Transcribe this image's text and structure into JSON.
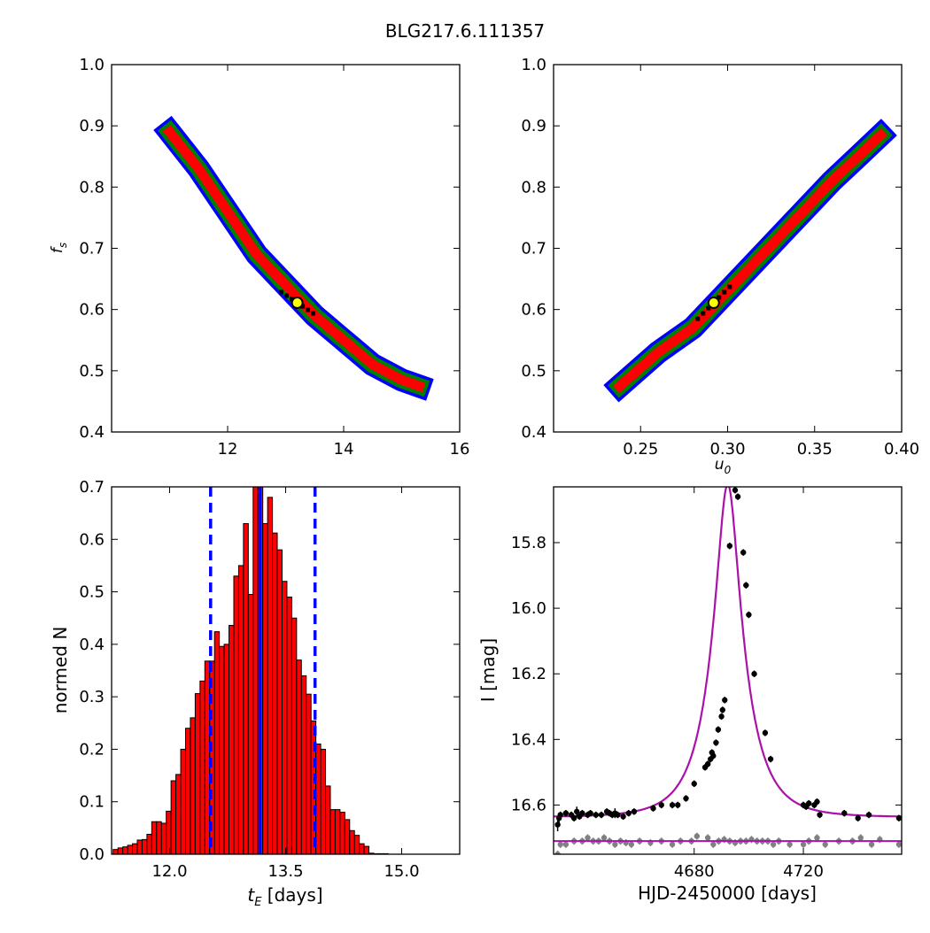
{
  "figure": {
    "title": "BLG217.6.111357"
  },
  "chart_data": [
    {
      "type": "heatmap",
      "id": "fs-vs-tE",
      "xlabel": "",
      "ylabel": "f_s",
      "xlim": [
        10,
        16
      ],
      "ylim": [
        0.4,
        1.0
      ],
      "xticks": [
        "12",
        "14",
        "16"
      ],
      "xtick_values": [
        12,
        14,
        16
      ],
      "yticks": [
        "0.4",
        "0.5",
        "0.6",
        "0.7",
        "0.8",
        "0.9",
        "1.0"
      ],
      "ytick_values": [
        0.4,
        0.5,
        0.6,
        0.7,
        0.8,
        0.9,
        1.0
      ],
      "levels": [
        "blue",
        "green",
        "red",
        "black"
      ],
      "colors": {
        "blue": "#0000ff",
        "green": "#008000",
        "red": "#ff0000",
        "black": "#000000",
        "marker_fill": "#ffff00"
      },
      "ridge": [
        [
          11.0,
          0.89
        ],
        [
          11.5,
          0.83
        ],
        [
          12.0,
          0.76
        ],
        [
          12.5,
          0.69
        ],
        [
          13.0,
          0.64
        ],
        [
          13.5,
          0.59
        ],
        [
          14.0,
          0.55
        ],
        [
          14.5,
          0.51
        ],
        [
          15.0,
          0.485
        ],
        [
          15.3,
          0.475
        ]
      ],
      "best_fit": {
        "x": 13.2,
        "y": 0.611
      }
    },
    {
      "type": "heatmap",
      "id": "fs-vs-u0",
      "xlabel": "u_0",
      "ylabel": "",
      "xlim": [
        0.2,
        0.4
      ],
      "ylim": [
        0.4,
        1.0
      ],
      "xticks": [
        "0.25",
        "0.30",
        "0.35",
        "0.40"
      ],
      "xtick_values": [
        0.25,
        0.3,
        0.35,
        0.4
      ],
      "yticks": [
        "0.4",
        "0.5",
        "0.6",
        "0.7",
        "0.8",
        "0.9",
        "1.0"
      ],
      "ytick_values": [
        0.4,
        0.5,
        0.6,
        0.7,
        0.8,
        0.9,
        1.0
      ],
      "levels": [
        "blue",
        "green",
        "red",
        "black"
      ],
      "colors": {
        "blue": "#0000ff",
        "green": "#008000",
        "red": "#ff0000",
        "black": "#000000",
        "marker_fill": "#ffff00"
      },
      "ridge": [
        [
          0.238,
          0.475
        ],
        [
          0.26,
          0.53
        ],
        [
          0.28,
          0.57
        ],
        [
          0.3,
          0.63
        ],
        [
          0.32,
          0.69
        ],
        [
          0.34,
          0.75
        ],
        [
          0.36,
          0.81
        ],
        [
          0.375,
          0.85
        ],
        [
          0.388,
          0.885
        ]
      ],
      "best_fit": {
        "x": 0.292,
        "y": 0.611
      }
    },
    {
      "type": "bar",
      "id": "tE-histogram",
      "xlabel": "t_E [days]",
      "ylabel": "normed N",
      "xlim": [
        11.25,
        15.75
      ],
      "ylim": [
        0.0,
        0.7
      ],
      "xticks": [
        "12.0",
        "13.5",
        "15.0"
      ],
      "xtick_values": [
        12.0,
        13.5,
        15.0
      ],
      "yticks": [
        "0.0",
        "0.1",
        "0.2",
        "0.3",
        "0.4",
        "0.5",
        "0.6",
        "0.7"
      ],
      "ytick_values": [
        0.0,
        0.1,
        0.2,
        0.3,
        0.4,
        0.5,
        0.6,
        0.7
      ],
      "bin_start": 11.27,
      "bin_width": 0.0624,
      "values": [
        0.009,
        0.012,
        0.014,
        0.017,
        0.02,
        0.027,
        0.028,
        0.038,
        0.062,
        0.062,
        0.059,
        0.082,
        0.14,
        0.152,
        0.2,
        0.24,
        0.26,
        0.306,
        0.33,
        0.368,
        0.368,
        0.424,
        0.396,
        0.4,
        0.436,
        0.53,
        0.55,
        0.63,
        0.495,
        0.7,
        0.7,
        0.63,
        0.68,
        0.612,
        0.58,
        0.52,
        0.49,
        0.45,
        0.37,
        0.34,
        0.305,
        0.254,
        0.21,
        0.2,
        0.13,
        0.085,
        0.085,
        0.08,
        0.066,
        0.045,
        0.036,
        0.02,
        0.015,
        0.002,
        0.001,
        0.001,
        0.001
      ],
      "median": 13.17,
      "interval": [
        12.53,
        13.88
      ],
      "colors": {
        "bar": "#ff0000",
        "edge": "#000000",
        "lines": "#0000ff"
      }
    },
    {
      "type": "scatter",
      "id": "lightcurve",
      "xlabel": "HJD-2450000 [days]",
      "ylabel": "I [mag]",
      "xlim": [
        4628.5,
        4756
      ],
      "ylim": [
        16.75,
        15.63
      ],
      "xticks": [
        "4680",
        "4720"
      ],
      "xtick_values": [
        4680,
        4720
      ],
      "yticks": [
        "15.8",
        "16.0",
        "16.2",
        "16.4",
        "16.6"
      ],
      "ytick_values": [
        15.8,
        16.0,
        16.2,
        16.4,
        16.6
      ],
      "model": {
        "t0": 4692.3,
        "tE": 13.17,
        "u0": 0.292,
        "fs": 0.611,
        "I_base": 16.637,
        "residual_level": 16.71
      },
      "points": [
        [
          4630,
          16.66,
          0.02
        ],
        [
          4630.5,
          16.64,
          0.015
        ],
        [
          4631,
          16.63,
          0.01
        ],
        [
          4633,
          16.625,
          0.01
        ],
        [
          4635,
          16.63,
          0.01
        ],
        [
          4636,
          16.64,
          0.01
        ],
        [
          4637,
          16.62,
          0.015
        ],
        [
          4638,
          16.635,
          0.01
        ],
        [
          4639,
          16.625,
          0.01
        ],
        [
          4641,
          16.63,
          0.01
        ],
        [
          4642,
          16.625,
          0.01
        ],
        [
          4644,
          16.63,
          0.01
        ],
        [
          4646,
          16.63,
          0.01
        ],
        [
          4648,
          16.62,
          0.01
        ],
        [
          4649,
          16.625,
          0.01
        ],
        [
          4650,
          16.63,
          0.01
        ],
        [
          4651,
          16.625,
          0.015
        ],
        [
          4652,
          16.63,
          0.01
        ],
        [
          4654,
          16.635,
          0.01
        ],
        [
          4656,
          16.625,
          0.01
        ],
        [
          4658,
          16.62,
          0.01
        ],
        [
          4665,
          16.61,
          0.01
        ],
        [
          4668,
          16.6,
          0.01
        ],
        [
          4672,
          16.6,
          0.01
        ],
        [
          4674,
          16.6,
          0.01
        ],
        [
          4677,
          16.58,
          0.01
        ],
        [
          4680,
          16.535,
          0.01
        ],
        [
          4684,
          16.485,
          0.01
        ],
        [
          4685,
          16.475,
          0.01
        ],
        [
          4686,
          16.46,
          0.01
        ],
        [
          4687,
          16.45,
          0.01
        ],
        [
          4688,
          16.41,
          0.01
        ],
        [
          4688.8,
          16.37,
          0.01
        ],
        [
          4690,
          16.33,
          0.01
        ],
        [
          4690.4,
          16.31,
          0.01
        ],
        [
          4691.2,
          16.28,
          0.01
        ],
        [
          4686.5,
          16.44,
          0.01
        ],
        [
          4693,
          15.81,
          0.01
        ],
        [
          4695,
          15.64,
          0.01
        ],
        [
          4696,
          15.66,
          0.01
        ],
        [
          4698,
          15.83,
          0.01
        ],
        [
          4699,
          15.93,
          0.01
        ],
        [
          4700,
          16.02,
          0.01
        ],
        [
          4702,
          16.2,
          0.01
        ],
        [
          4706,
          16.38,
          0.01
        ],
        [
          4708,
          16.46,
          0.01
        ],
        [
          4720,
          16.6,
          0.01
        ],
        [
          4721,
          16.605,
          0.01
        ],
        [
          4722,
          16.595,
          0.01
        ],
        [
          4724,
          16.6,
          0.01
        ],
        [
          4725,
          16.59,
          0.01
        ],
        [
          4726,
          16.63,
          0.01
        ],
        [
          4735,
          16.625,
          0.01
        ],
        [
          4740,
          16.64,
          0.01
        ],
        [
          4744,
          16.63,
          0.01
        ],
        [
          4755,
          16.64,
          0.01
        ]
      ],
      "residuals": [
        [
          4630,
          16.75
        ],
        [
          4631,
          16.72
        ],
        [
          4633,
          16.72
        ],
        [
          4636,
          16.71
        ],
        [
          4639,
          16.71
        ],
        [
          4641,
          16.7
        ],
        [
          4643,
          16.71
        ],
        [
          4645,
          16.71
        ],
        [
          4647,
          16.7
        ],
        [
          4649,
          16.71
        ],
        [
          4651,
          16.72
        ],
        [
          4653,
          16.71
        ],
        [
          4655,
          16.715
        ],
        [
          4657,
          16.72
        ],
        [
          4660,
          16.71
        ],
        [
          4664,
          16.715
        ],
        [
          4668,
          16.71
        ],
        [
          4672,
          16.72
        ],
        [
          4675,
          16.71
        ],
        [
          4679,
          16.71
        ],
        [
          4681,
          16.695
        ],
        [
          4685,
          16.7
        ],
        [
          4687,
          16.72
        ],
        [
          4689,
          16.71
        ],
        [
          4691,
          16.705
        ],
        [
          4693,
          16.71
        ],
        [
          4695,
          16.715
        ],
        [
          4697,
          16.71
        ],
        [
          4699,
          16.71
        ],
        [
          4701,
          16.705
        ],
        [
          4703,
          16.71
        ],
        [
          4705,
          16.71
        ],
        [
          4707,
          16.71
        ],
        [
          4709,
          16.72
        ],
        [
          4711,
          16.71
        ],
        [
          4715,
          16.72
        ],
        [
          4720,
          16.72
        ],
        [
          4722,
          16.71
        ],
        [
          4725,
          16.7
        ],
        [
          4728,
          16.72
        ],
        [
          4733,
          16.71
        ],
        [
          4738,
          16.71
        ],
        [
          4741,
          16.7
        ],
        [
          4745,
          16.72
        ],
        [
          4748,
          16.705
        ],
        [
          4755,
          16.72
        ]
      ],
      "colors": {
        "points": "#000000",
        "residuals": "#808080",
        "model": "#aa11aa"
      }
    }
  ]
}
